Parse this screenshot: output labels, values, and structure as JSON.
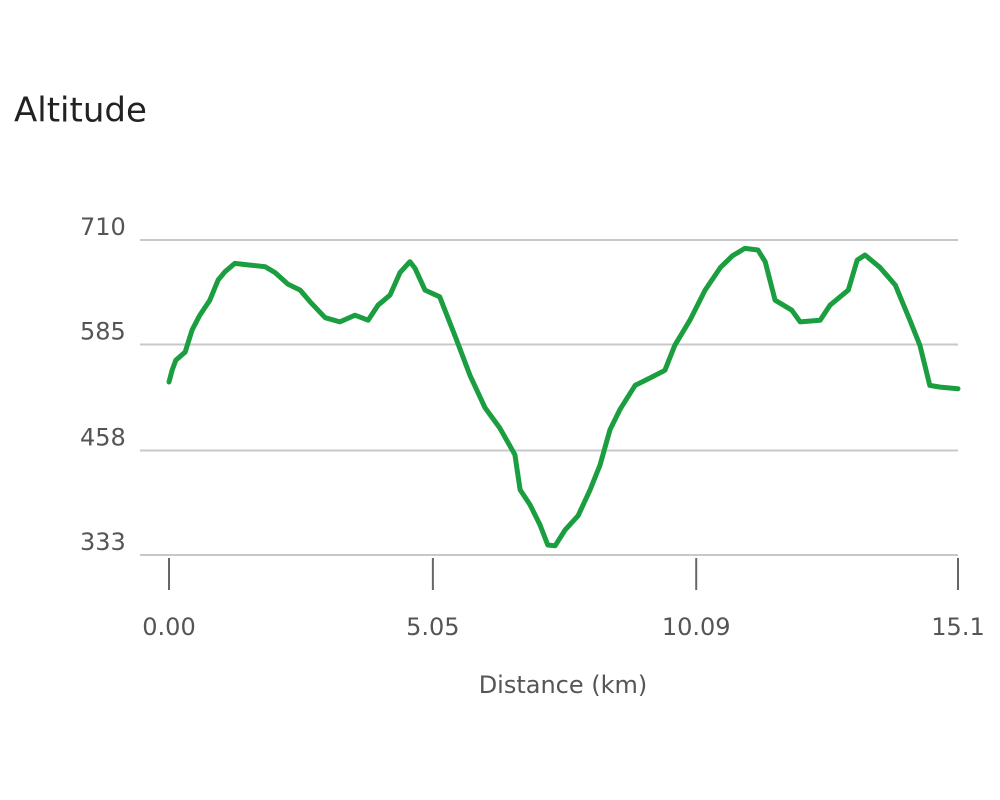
{
  "chart_data": {
    "type": "line",
    "title": "Altitude",
    "x_label": "Distance (km)",
    "xlim": [
      0,
      15.1
    ],
    "xticks": [
      {
        "value": 0,
        "label": "0.00"
      },
      5.05,
      10.09,
      15.1
    ],
    "ylim": [
      333,
      710
    ],
    "yticks": [
      333,
      458,
      585,
      710
    ],
    "grid": true,
    "series": [
      {
        "name": "Altitude",
        "color": "#1a9e3f",
        "x": [
          0,
          0.06,
          0.13,
          0.31,
          0.44,
          0.59,
          0.78,
          0.94,
          1.07,
          1.26,
          1.55,
          1.84,
          2.03,
          2.28,
          2.51,
          2.7,
          2.99,
          3.27,
          3.56,
          3.81,
          4.0,
          4.23,
          4.42,
          4.61,
          4.71,
          4.9,
          5.18,
          5.47,
          5.76,
          6.05,
          6.33,
          6.62,
          6.72,
          6.91,
          7.1,
          7.25,
          7.39,
          7.58,
          7.83,
          8.06,
          8.25,
          8.44,
          8.63,
          8.92,
          9.21,
          9.49,
          9.68,
          9.97,
          10.26,
          10.55,
          10.78,
          11.02,
          11.27,
          11.41,
          11.6,
          11.92,
          12.08,
          12.46,
          12.65,
          13.0,
          13.17,
          13.32,
          13.61,
          13.9,
          14.18,
          14.37,
          14.56,
          14.76,
          15.1
        ],
        "values": [
          540,
          554,
          566,
          576,
          602,
          620,
          638,
          662,
          672,
          682,
          680,
          678,
          671,
          657,
          650,
          636,
          617,
          612,
          620,
          614,
          632,
          644,
          671,
          684,
          676,
          650,
          642,
          596,
          548,
          509,
          485,
          453,
          411,
          393,
          369,
          345,
          344,
          363,
          380,
          411,
          441,
          483,
          507,
          536,
          545,
          554,
          584,
          614,
          650,
          677,
          691,
          700,
          698,
          684,
          638,
          626,
          612,
          614,
          632,
          650,
          686,
          692,
          677,
          656,
          614,
          584,
          536,
          534,
          532
        ]
      }
    ]
  }
}
